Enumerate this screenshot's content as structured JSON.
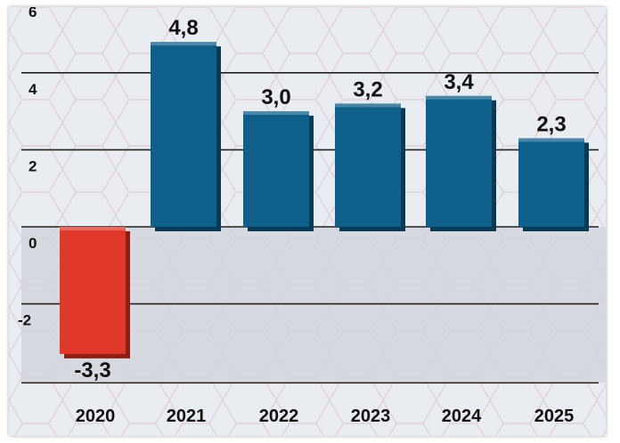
{
  "chart_data": {
    "type": "bar",
    "categories": [
      "2020",
      "2021",
      "2022",
      "2023",
      "2024",
      "2025"
    ],
    "values": [
      -3.3,
      4.8,
      3.0,
      3.2,
      3.4,
      2.3
    ],
    "value_labels": [
      "-3,3",
      "4,8",
      "3,0",
      "3,2",
      "3,4",
      "2,3"
    ],
    "title": "",
    "xlabel": "",
    "ylabel": "",
    "ylim": [
      -4,
      6
    ],
    "yticks": [
      6,
      4,
      2,
      0,
      -2
    ],
    "ytick_labels": [
      "6",
      "4",
      "2",
      "0",
      "-2"
    ],
    "grid": true,
    "colors": {
      "positive": "#0e5f8a",
      "negative": "#e0392b",
      "negative_region": "#cfd3d9"
    }
  }
}
